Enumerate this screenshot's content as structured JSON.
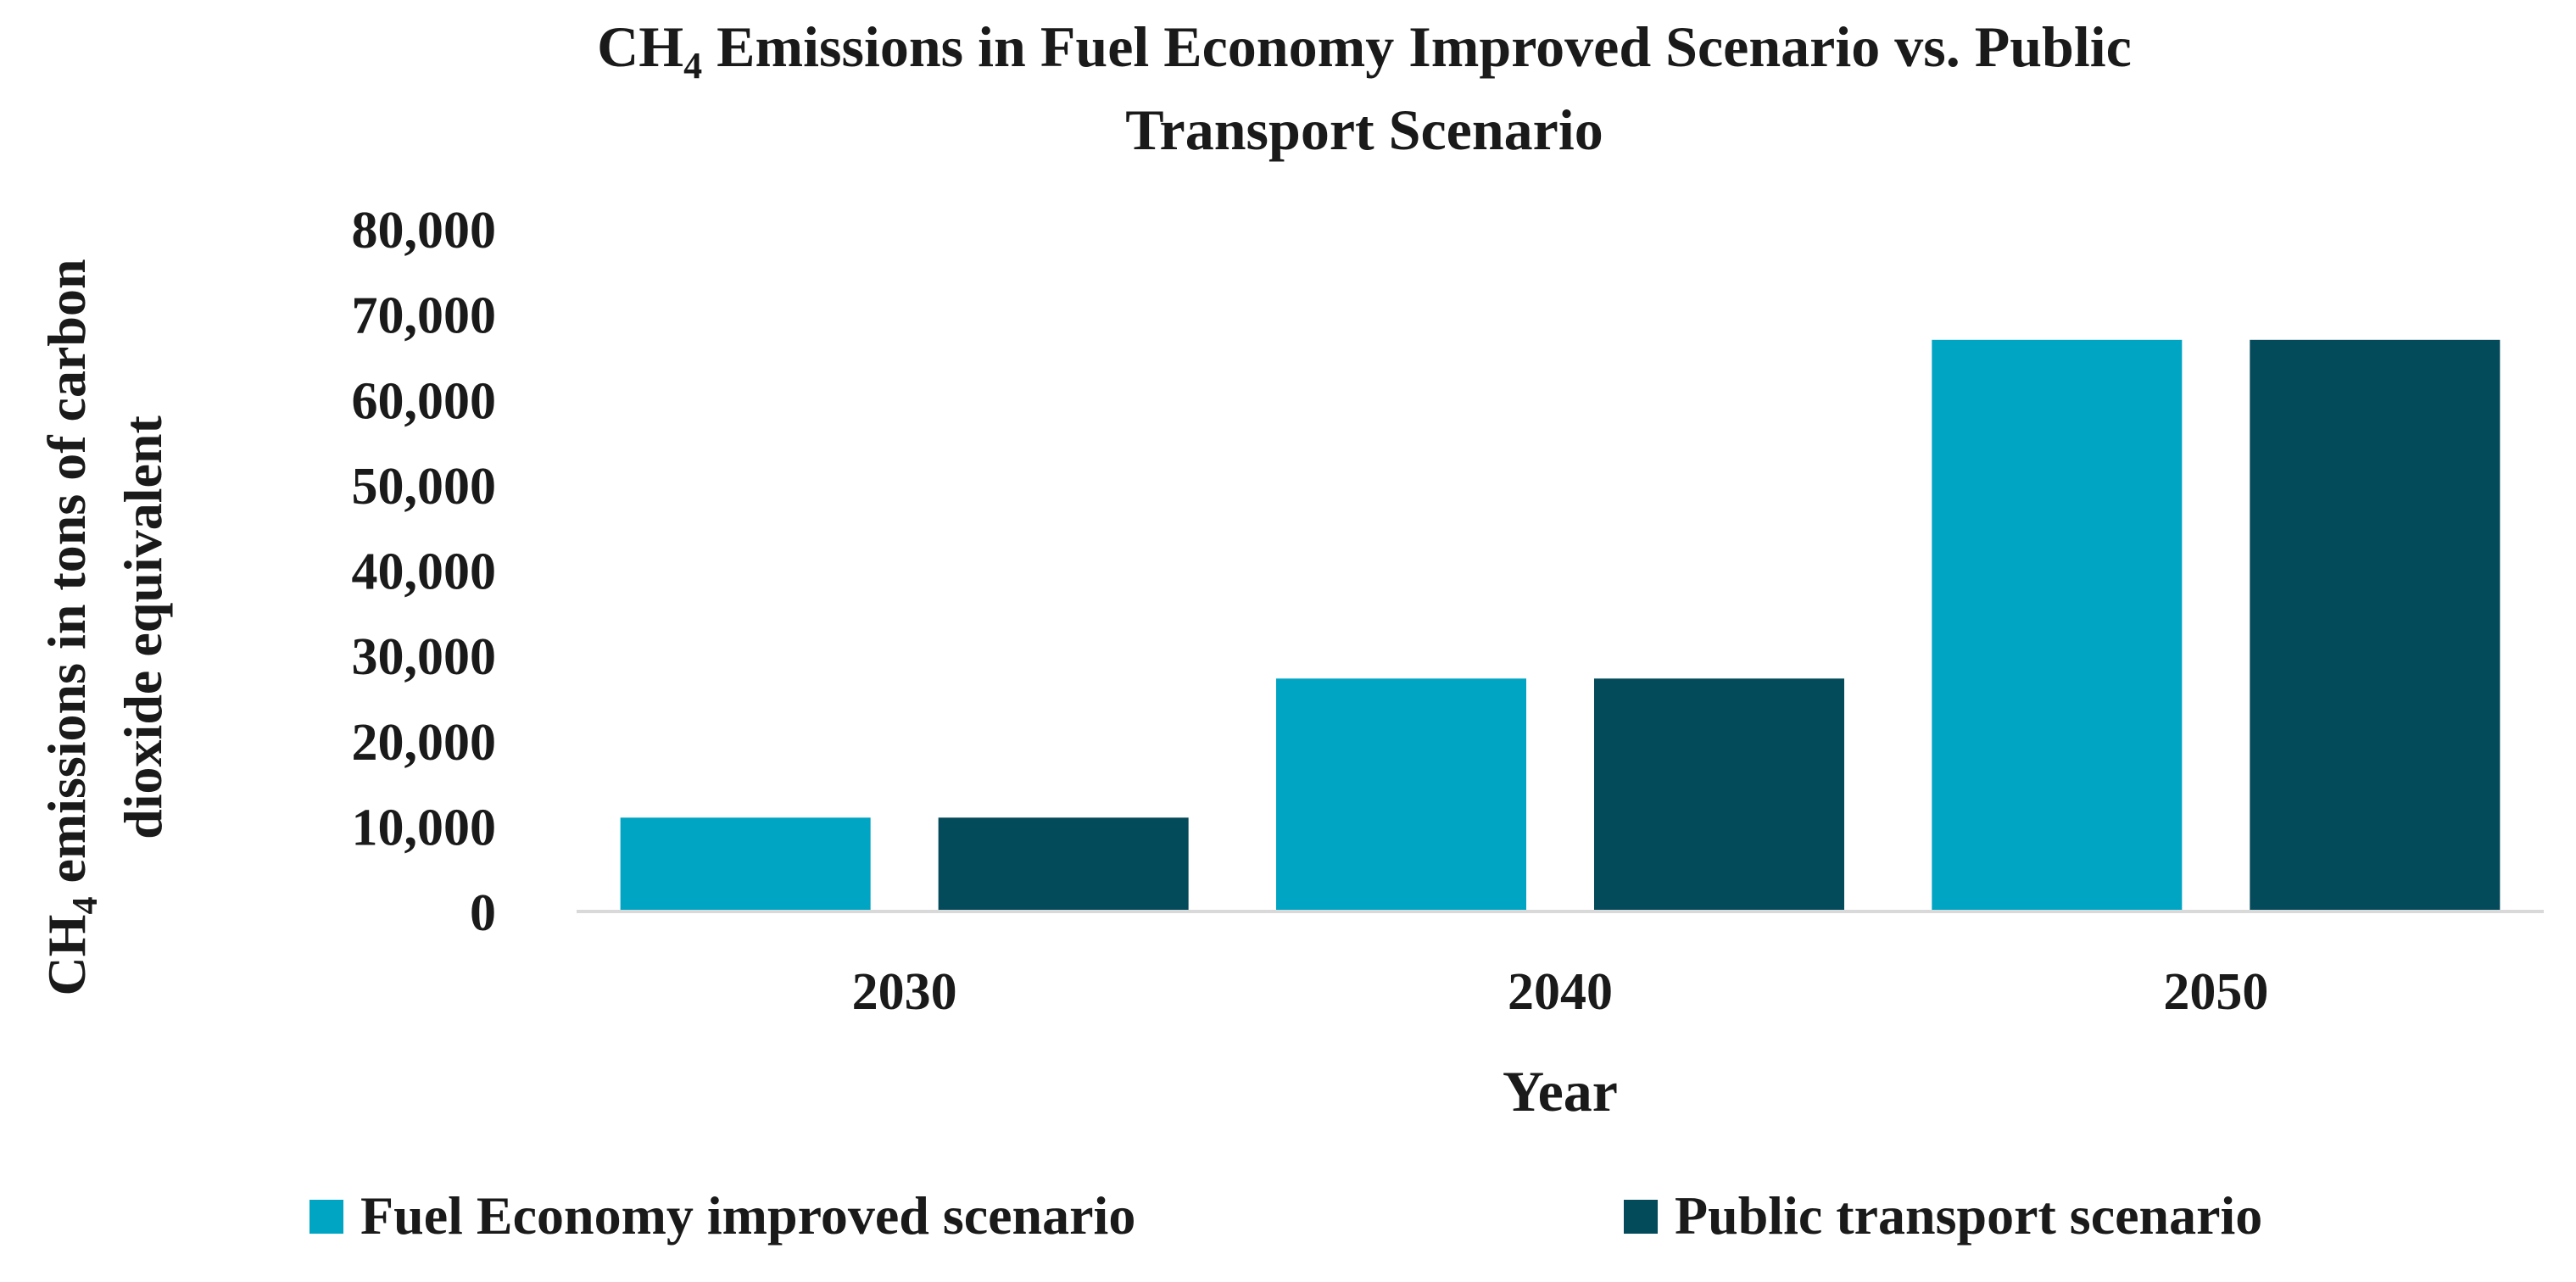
{
  "chart_data": {
    "type": "bar",
    "title_parts": {
      "line1_pre": "CH",
      "line1_sub": "4",
      "line1_post": " Emissions in Fuel Economy Improved Scenario vs. Public",
      "line2": "Transport Scenario"
    },
    "xlabel": "Year",
    "ylabel_parts": {
      "line1_pre": "CH",
      "line1_sub": "4",
      "line1_post": " emissions in tons of carbon",
      "line2": "dioxide equivalent"
    },
    "categories": [
      "2030",
      "2040",
      "2050"
    ],
    "series": [
      {
        "name": "Fuel Economy improved scenario",
        "values": [
          11000,
          27300,
          67000
        ],
        "color": "#00A5C3"
      },
      {
        "name": "Public transport scenario",
        "values": [
          11000,
          27300,
          67000
        ],
        "color": "#034A5A"
      }
    ],
    "ylim": [
      0,
      80000
    ],
    "yticks": [
      0,
      10000,
      20000,
      30000,
      40000,
      50000,
      60000,
      70000,
      80000
    ],
    "ytick_labels": [
      "0",
      "10,000",
      "20,000",
      "30,000",
      "40,000",
      "50,000",
      "60,000",
      "70,000",
      "80,000"
    ],
    "grid": false,
    "legend_position": "bottom"
  }
}
